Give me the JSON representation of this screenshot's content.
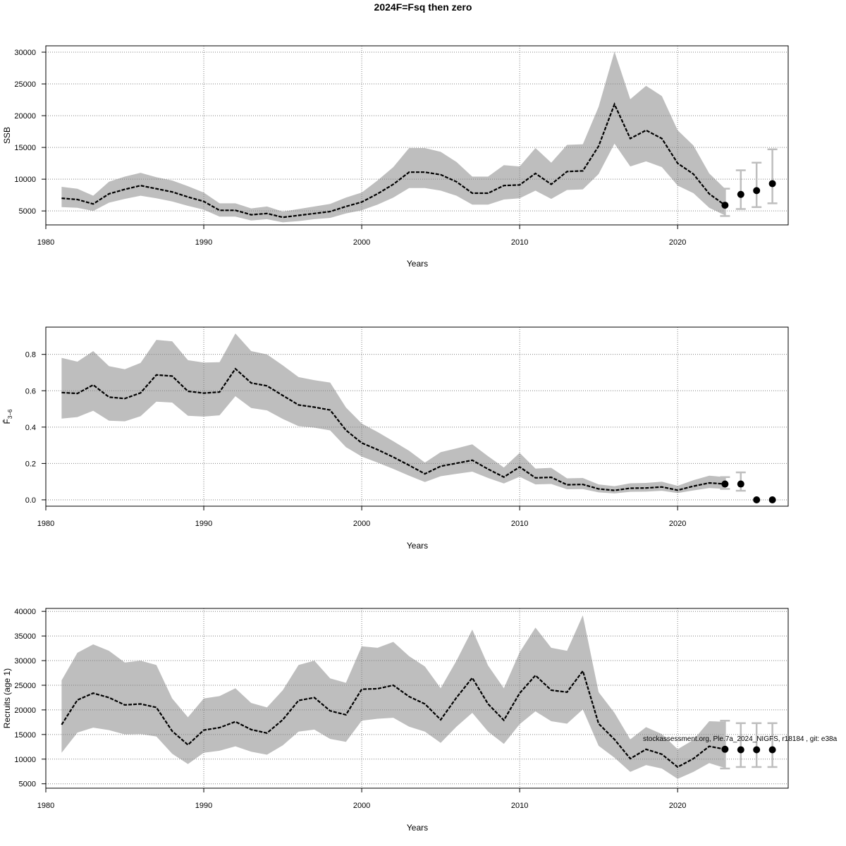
{
  "title": "2024F=Fsq then zero",
  "footer_note": "stockassessment.org, Ple.7a_2024_NIGFS, r18184 , git: e38a",
  "colors": {
    "band": "#bebebe",
    "line": "#000000",
    "grid": "#808080",
    "errorbar": "#bebebe",
    "point": "#000000"
  },
  "chart_data": [
    {
      "type": "line",
      "ylabel": "SSB",
      "xlabel": "Years",
      "xlim": [
        1980,
        2027
      ],
      "ylim": [
        2800,
        31000
      ],
      "xticks": [
        1980,
        1990,
        2000,
        2010,
        2020
      ],
      "yticks": [
        5000,
        10000,
        15000,
        20000,
        25000,
        30000
      ],
      "grid": true,
      "years": [
        1981,
        1982,
        1983,
        1984,
        1985,
        1986,
        1987,
        1988,
        1989,
        1990,
        1991,
        1992,
        1993,
        1994,
        1995,
        1996,
        1997,
        1998,
        1999,
        2000,
        2001,
        2002,
        2003,
        2004,
        2005,
        2006,
        2007,
        2008,
        2009,
        2010,
        2011,
        2012,
        2013,
        2014,
        2015,
        2016,
        2017,
        2018,
        2019,
        2020,
        2021,
        2022,
        2023
      ],
      "estimate": [
        7000,
        6800,
        6100,
        7700,
        8400,
        9000,
        8500,
        8000,
        7200,
        6500,
        5100,
        5100,
        4400,
        4600,
        4000,
        4300,
        4600,
        4900,
        5700,
        6400,
        7700,
        9200,
        11100,
        11100,
        10700,
        9600,
        7800,
        7800,
        9000,
        9100,
        10900,
        9200,
        11200,
        11300,
        15200,
        21800,
        16400,
        17700,
        16400,
        12500,
        10800,
        7700,
        5900
      ],
      "lower": [
        5600,
        5500,
        5000,
        6300,
        6900,
        7400,
        7000,
        6500,
        5800,
        5200,
        4100,
        4100,
        3500,
        3700,
        3200,
        3400,
        3700,
        3900,
        4600,
        5100,
        6000,
        7100,
        8600,
        8600,
        8200,
        7400,
        6000,
        6000,
        6800,
        7000,
        8200,
        6900,
        8300,
        8400,
        10800,
        15600,
        12000,
        12800,
        11900,
        9000,
        7800,
        5500,
        4300
      ],
      "upper": [
        8800,
        8500,
        7400,
        9600,
        10400,
        11000,
        10300,
        9800,
        8900,
        7900,
        6200,
        6200,
        5400,
        5700,
        4900,
        5300,
        5700,
        6100,
        7100,
        7900,
        9800,
        11900,
        14900,
        14900,
        14300,
        12700,
        10400,
        10400,
        12200,
        12000,
        14900,
        12600,
        15400,
        15500,
        21400,
        30100,
        22600,
        24700,
        23100,
        17700,
        15300,
        10900,
        8500
      ],
      "projection": {
        "years": [
          2023,
          2024,
          2025,
          2026
        ],
        "median": [
          5900,
          7600,
          8200,
          9300
        ],
        "low": [
          4200,
          5300,
          5600,
          6200
        ],
        "high": [
          8500,
          11400,
          12600,
          14700
        ]
      }
    },
    {
      "type": "line",
      "ylabel": "F̄",
      "ylabel_sub": "3−6",
      "xlabel": "Years",
      "xlim": [
        1980,
        2027
      ],
      "ylim": [
        -0.035,
        0.95
      ],
      "xticks": [
        1980,
        1990,
        2000,
        2010,
        2020
      ],
      "yticks": [
        0.0,
        0.2,
        0.4,
        0.6,
        0.8
      ],
      "ytick_labels": [
        "0.0",
        "0.2",
        "0.4",
        "0.6",
        "0.8"
      ],
      "grid": true,
      "years": [
        1981,
        1982,
        1983,
        1984,
        1985,
        1986,
        1987,
        1988,
        1989,
        1990,
        1991,
        1992,
        1993,
        1994,
        1995,
        1996,
        1997,
        1998,
        1999,
        2000,
        2001,
        2002,
        2003,
        2004,
        2005,
        2006,
        2007,
        2008,
        2009,
        2010,
        2011,
        2012,
        2013,
        2014,
        2015,
        2016,
        2017,
        2018,
        2019,
        2020,
        2021,
        2022,
        2023
      ],
      "estimate": [
        0.59,
        0.585,
        0.632,
        0.565,
        0.557,
        0.588,
        0.687,
        0.681,
        0.597,
        0.587,
        0.593,
        0.721,
        0.643,
        0.627,
        0.574,
        0.522,
        0.51,
        0.494,
        0.383,
        0.313,
        0.276,
        0.235,
        0.19,
        0.143,
        0.185,
        0.201,
        0.218,
        0.169,
        0.125,
        0.181,
        0.121,
        0.124,
        0.083,
        0.085,
        0.06,
        0.052,
        0.064,
        0.065,
        0.071,
        0.053,
        0.075,
        0.093,
        0.087
      ],
      "lower": [
        0.447,
        0.455,
        0.49,
        0.435,
        0.432,
        0.46,
        0.54,
        0.535,
        0.462,
        0.458,
        0.465,
        0.57,
        0.505,
        0.492,
        0.445,
        0.405,
        0.397,
        0.382,
        0.29,
        0.238,
        0.205,
        0.17,
        0.133,
        0.098,
        0.13,
        0.143,
        0.155,
        0.12,
        0.09,
        0.127,
        0.085,
        0.087,
        0.058,
        0.059,
        0.041,
        0.035,
        0.044,
        0.045,
        0.05,
        0.037,
        0.052,
        0.065,
        0.06
      ],
      "upper": [
        0.781,
        0.76,
        0.818,
        0.735,
        0.718,
        0.753,
        0.88,
        0.872,
        0.768,
        0.755,
        0.757,
        0.915,
        0.818,
        0.8,
        0.74,
        0.675,
        0.658,
        0.645,
        0.508,
        0.42,
        0.373,
        0.322,
        0.27,
        0.205,
        0.262,
        0.283,
        0.305,
        0.24,
        0.178,
        0.258,
        0.172,
        0.176,
        0.118,
        0.12,
        0.085,
        0.075,
        0.091,
        0.093,
        0.1,
        0.077,
        0.108,
        0.133,
        0.125
      ],
      "projection": {
        "years": [
          2023,
          2024,
          2025,
          2026
        ],
        "median": [
          0.087,
          0.087,
          0.0,
          0.0
        ],
        "low": [
          0.06,
          0.05,
          0.0,
          0.0
        ],
        "high": [
          0.125,
          0.151,
          0.0,
          0.0
        ]
      }
    },
    {
      "type": "line",
      "ylabel": "Recruits (age 1)",
      "xlabel": "Years",
      "xlim": [
        1980,
        2027
      ],
      "ylim": [
        4100,
        40600
      ],
      "xticks": [
        1980,
        1990,
        2000,
        2010,
        2020
      ],
      "yticks": [
        5000,
        10000,
        15000,
        20000,
        25000,
        30000,
        35000,
        40000
      ],
      "grid": true,
      "years": [
        1981,
        1982,
        1983,
        1984,
        1985,
        1986,
        1987,
        1988,
        1989,
        1990,
        1991,
        1992,
        1993,
        1994,
        1995,
        1996,
        1997,
        1998,
        1999,
        2000,
        2001,
        2002,
        2003,
        2004,
        2005,
        2006,
        2007,
        2008,
        2009,
        2010,
        2011,
        2012,
        2013,
        2014,
        2015,
        2016,
        2017,
        2018,
        2019,
        2020,
        2021,
        2022,
        2023
      ],
      "estimate": [
        17000,
        22000,
        23400,
        22500,
        21000,
        21200,
        20500,
        15700,
        12900,
        15900,
        16400,
        17600,
        16000,
        15300,
        18000,
        21900,
        22500,
        19800,
        19000,
        24200,
        24300,
        25000,
        22700,
        21200,
        18000,
        22500,
        26500,
        21200,
        17900,
        23400,
        27000,
        24000,
        23600,
        27900,
        17200,
        14000,
        10100,
        12000,
        11000,
        8400,
        10100,
        12600,
        12000
      ],
      "lower": [
        11300,
        15400,
        16400,
        15900,
        15000,
        15100,
        14600,
        11100,
        9000,
        11300,
        11700,
        12600,
        11500,
        10900,
        12800,
        15600,
        16000,
        14100,
        13500,
        17800,
        18200,
        18400,
        16600,
        15600,
        13300,
        16600,
        19400,
        15600,
        13100,
        17100,
        19700,
        17700,
        17200,
        20100,
        12700,
        10300,
        7400,
        8800,
        8100,
        6000,
        7400,
        9200,
        8200
      ],
      "upper": [
        26000,
        31600,
        33300,
        32000,
        29600,
        30000,
        29100,
        22300,
        18500,
        22300,
        22800,
        24400,
        21400,
        20500,
        24000,
        29100,
        30000,
        26400,
        25500,
        32900,
        32600,
        33800,
        30900,
        28800,
        24400,
        30000,
        36300,
        29000,
        24400,
        31700,
        36700,
        32600,
        32000,
        39200,
        23600,
        19400,
        14000,
        16500,
        15100,
        12000,
        13900,
        17700,
        17600
      ],
      "projection": {
        "years": [
          2023,
          2024,
          2025,
          2026
        ],
        "median": [
          12000,
          11900,
          11900,
          11900
        ],
        "low": [
          8100,
          8400,
          8400,
          8400
        ],
        "high": [
          17800,
          17300,
          17300,
          17300
        ]
      }
    }
  ]
}
